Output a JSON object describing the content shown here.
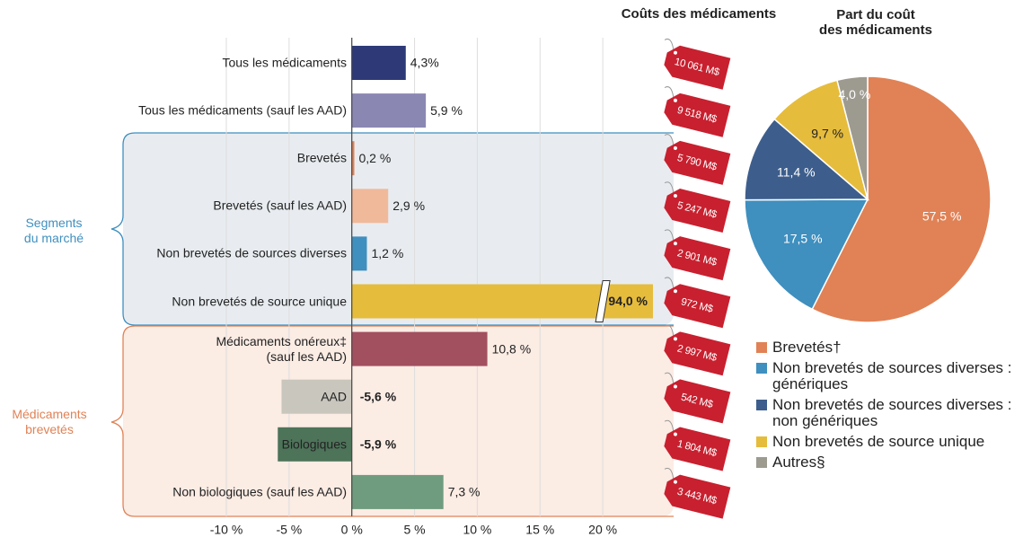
{
  "chart_data": [
    {
      "type": "hbar",
      "categories": [
        "Tous les médicaments",
        "Tous les médicaments (sauf les AAD)",
        "Brevetés",
        "Brevetés (sauf les AAD)",
        "Non brevetés de sources diverses",
        "Non brevetés de source unique",
        "Médicaments onéreux‡\n(sauf les AAD)",
        "AAD",
        "Biologiques",
        "Non biologiques (sauf les AAD)"
      ],
      "values": [
        4.3,
        5.9,
        0.2,
        2.9,
        1.2,
        94.0,
        10.8,
        -5.6,
        -5.9,
        7.3
      ],
      "value_labels": [
        "4,3%",
        "5,9 %",
        "0,2 %",
        "2,9 %",
        "1,2 %",
        "94,0 %",
        "10,8 %",
        "-5,6 %",
        "-5,9 %",
        "7,3 %"
      ],
      "colors": [
        "#2e3a78",
        "#8b87b3",
        "#e08256",
        "#f0b99a",
        "#3f8fbf",
        "#e6bc3c",
        "#a24f60",
        "#c9c6bd",
        "#4d7359",
        "#6f9c7e"
      ],
      "xlim": [
        -10,
        24
      ],
      "xticks": [
        {
          "value": -10,
          "label": "-10 %"
        },
        {
          "value": -5,
          "label": "-5 %"
        },
        {
          "value": 0,
          "label": "0 %"
        },
        {
          "value": 5,
          "label": "5 %"
        },
        {
          "value": 10,
          "label": "10 %"
        },
        {
          "value": 15,
          "label": "15 %"
        },
        {
          "value": 20,
          "label": "20 %"
        }
      ],
      "grid": true,
      "groups": [
        "Segments\ndu marché",
        "Médicaments\nbrevetés"
      ],
      "costs_title": "Coûts des médicaments",
      "costs": [
        "10 061 M$",
        "9 518 M$",
        "5 790 M$",
        "5 247 M$",
        "2 901 M$",
        "972 M$",
        "2 997 M$",
        "542 M$",
        "1 804 M$",
        "3 443 M$"
      ]
    },
    {
      "type": "pie",
      "title": "Part du coût\ndes médicaments",
      "categories": [
        "Brevetés†",
        "Non brevetés de sources diverses : génériques",
        "Non brevetés de sources diverses : non génériques",
        "Non brevetés de source unique",
        "Autres§"
      ],
      "values": [
        57.5,
        17.5,
        11.4,
        9.7,
        4.0
      ],
      "value_labels": [
        "57,5 %",
        "17,5 %",
        "11,4 %",
        "9,7 %",
        "4,0 %"
      ],
      "colors": [
        "#e08256",
        "#3f8fbf",
        "#3d5e8c",
        "#e6bc3c",
        "#9d9a90"
      ]
    }
  ]
}
